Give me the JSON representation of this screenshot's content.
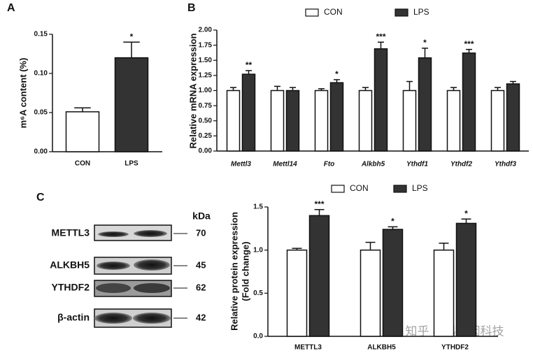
{
  "chart_data": [
    {
      "type": "bar",
      "panel_label": "A",
      "ylabel": "m⁶A content (%)",
      "categories": [
        "CON",
        "LPS"
      ],
      "values": [
        0.051,
        0.12
      ],
      "errors": [
        0.005,
        0.02
      ],
      "colors": [
        "#ffffff",
        "#333333"
      ],
      "annotations": [
        null,
        "*"
      ],
      "ylim": [
        0,
        0.15
      ],
      "yticks": [
        {
          "value": 0,
          "label": "0.00"
        },
        0.05,
        {
          "value": 0.1,
          "label": "0.10"
        },
        0.15
      ]
    },
    {
      "type": "bar",
      "panel_label": "B",
      "ylabel": "Relative mRNA expression",
      "categories": [
        "Mettl3",
        "Mettl14",
        "Fto",
        "Alkbh5",
        "Ythdf1",
        "Ythdf2",
        "Ythdf3"
      ],
      "series": [
        {
          "name": "CON",
          "color": "#ffffff",
          "values": [
            1.0,
            1.0,
            1.0,
            1.0,
            1.0,
            1.0,
            1.0
          ],
          "errors": [
            0.05,
            0.07,
            0.03,
            0.05,
            0.15,
            0.05,
            0.05
          ]
        },
        {
          "name": "LPS",
          "color": "#333333",
          "values": [
            1.27,
            1.0,
            1.13,
            1.69,
            1.54,
            1.62,
            1.11
          ],
          "errors": [
            0.06,
            0.05,
            0.05,
            0.11,
            0.16,
            0.06,
            0.04
          ]
        }
      ],
      "annotations": [
        "**",
        null,
        "*",
        "***",
        "*",
        "***",
        null
      ],
      "ylim": [
        0,
        2
      ],
      "yticks": [
        {
          "value": 0,
          "label": "0.00"
        },
        0.25,
        {
          "value": 0.5,
          "label": "0.50"
        },
        0.75,
        {
          "value": 1,
          "label": "1.00"
        },
        1.25,
        {
          "value": 1.5,
          "label": "1.50"
        },
        1.75,
        {
          "value": 2,
          "label": "2.00"
        }
      ]
    },
    {
      "type": "bar",
      "panel_label": "C",
      "ylabel": [
        "Relative protein expression",
        "(Fold change)"
      ],
      "categories": [
        "METTL3",
        "ALKBH5",
        "YTHDF2"
      ],
      "series": [
        {
          "name": "CON",
          "color": "#ffffff",
          "values": [
            1.0,
            1.0,
            1.0
          ],
          "errors": [
            0.02,
            0.09,
            0.08
          ]
        },
        {
          "name": "LPS",
          "color": "#333333",
          "values": [
            1.4,
            1.24,
            1.31
          ],
          "errors": [
            0.07,
            0.03,
            0.05
          ]
        }
      ],
      "annotations": [
        "***",
        "*",
        "*"
      ],
      "ylim": [
        0,
        1.5
      ],
      "yticks": [
        {
          "value": 0,
          "label": "0.0"
        },
        0.5,
        {
          "value": 1,
          "label": "1.0"
        },
        1.5
      ]
    }
  ],
  "blot": {
    "unit": "kDa",
    "rows": [
      {
        "label": "METTL3",
        "kda": "70"
      },
      {
        "label": "ALKBH5",
        "kda": "45"
      },
      {
        "label": "YTHDF2",
        "kda": "62"
      },
      {
        "label": "β-actin",
        "kda": "42"
      }
    ]
  },
  "watermark": "知乎 @易基因科技"
}
